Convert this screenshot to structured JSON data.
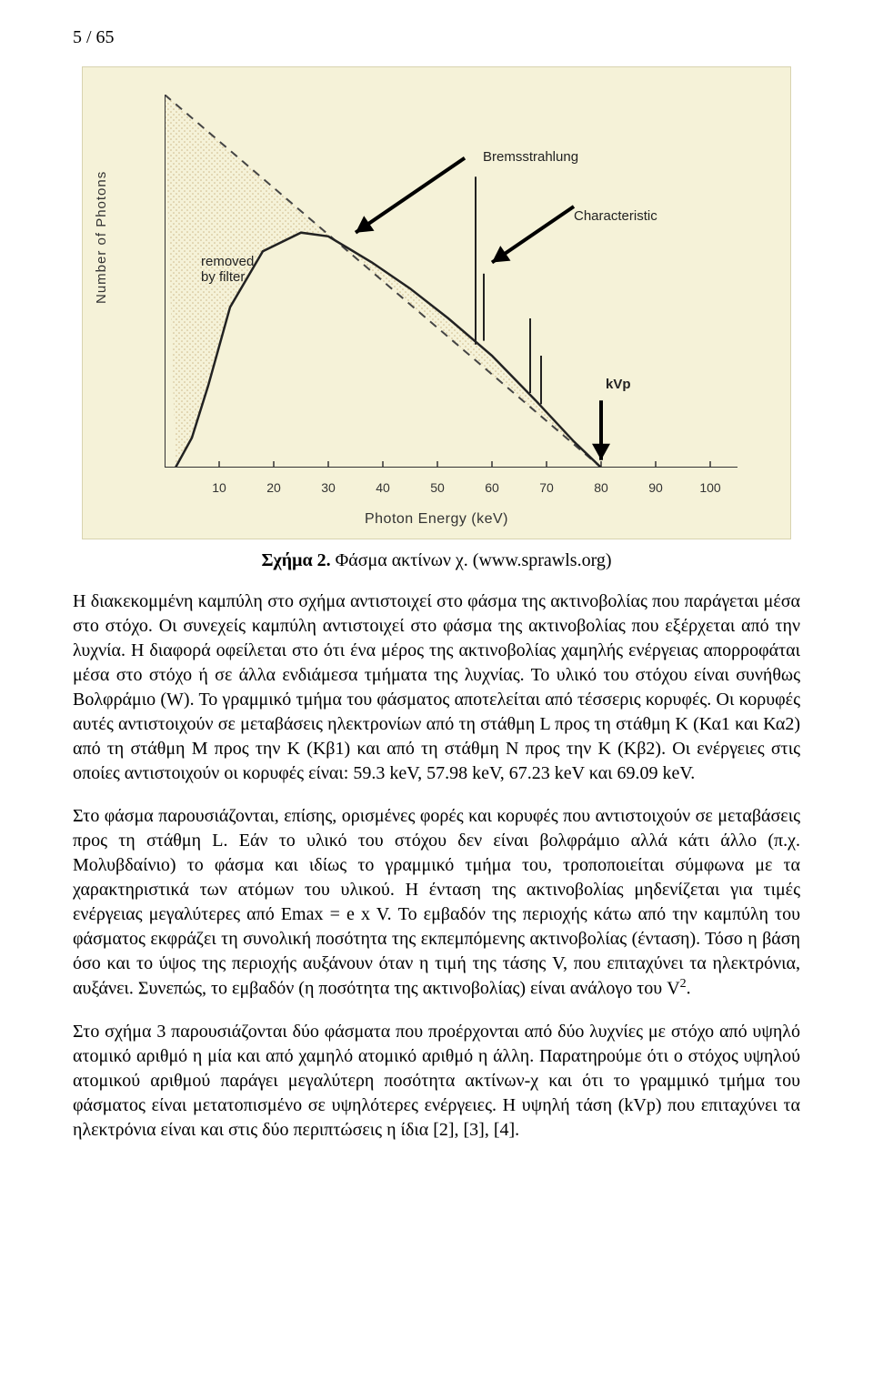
{
  "page_number": "5 / 65",
  "figure": {
    "type": "line",
    "background_color": "#f5f2d8",
    "axis_color": "#333333",
    "curve_color": "#222222",
    "dashed_color": "#444444",
    "stipple_color": "#cdb98a",
    "y_label": "Number  of  Photons",
    "x_label": "Photon Energy (keV)",
    "x_ticks": [
      {
        "label": "10",
        "value": 10
      },
      {
        "label": "20",
        "value": 20
      },
      {
        "label": "30",
        "value": 30
      },
      {
        "label": "40",
        "value": 40
      },
      {
        "label": "50",
        "value": 50
      },
      {
        "label": "60",
        "value": 60
      },
      {
        "label": "70",
        "value": 70
      },
      {
        "label": "80",
        "value": 80
      },
      {
        "label": "90",
        "value": 90
      },
      {
        "label": "100",
        "value": 100
      }
    ],
    "xlim": [
      0,
      105
    ],
    "ylim": [
      0,
      100
    ],
    "dashed_line": [
      [
        0,
        100
      ],
      [
        80,
        0
      ]
    ],
    "curve": [
      [
        2,
        0
      ],
      [
        5,
        8
      ],
      [
        8,
        22
      ],
      [
        12,
        43
      ],
      [
        18,
        58
      ],
      [
        25,
        63
      ],
      [
        30,
        62
      ],
      [
        38,
        55
      ],
      [
        45,
        48
      ],
      [
        52,
        40
      ],
      [
        60,
        30
      ],
      [
        68,
        18
      ],
      [
        75,
        7
      ],
      [
        80,
        0
      ]
    ],
    "characteristic_lines": [
      {
        "x": 57,
        "height_from": 33,
        "height_to": 78
      },
      {
        "x": 58.5,
        "height_from": 34,
        "height_to": 52
      },
      {
        "x": 67,
        "height_from": 20,
        "height_to": 40
      },
      {
        "x": 69,
        "height_from": 17,
        "height_to": 30
      }
    ],
    "callouts": {
      "removed": "removed\nby filter",
      "bremsstrahlung": "Bremsstrahlung",
      "characteristic": "Characteristic",
      "kvp": "kVp"
    }
  },
  "caption_bold": "Σχήμα 2. ",
  "caption_rest": "Φάσμα ακτίνων χ. (www.sprawls.org)",
  "para1": "Η διακεκομμένη καμπύλη στο σχήμα αντιστοιχεί στο φάσμα της ακτινοβολίας που παράγεται μέσα στο στόχο. Οι συνεχείς καμπύλη αντιστοιχεί στο φάσμα της ακτινοβολίας που εξέρχεται από την λυχνία. Η διαφορά οφείλεται στο ότι ένα μέρος της ακτινοβολίας χαμηλής ενέργειας απορροφάται μέσα στο στόχο ή σε άλλα ενδιάμεσα τμήματα της λυχνίας. Το υλικό του στόχου είναι συνήθως Βολφράμιο (W). Το γραμμικό τμήμα του φάσματος αποτελείται από τέσσερις κορυφές. Οι κορυφές αυτές αντιστοιχούν σε μεταβάσεις ηλεκτρονίων από τη στάθμη L προς τη στάθμη Κ (Κα1 και Κα2) από τη στάθμη Μ προς την Κ (Κβ1) και από τη στάθμη Ν προς την Κ (Κβ2). Οι ενέργειες στις οποίες αντιστοιχούν οι κορυφές είναι: 59.3 keV, 57.98 keV, 67.23 keV και 69.09 keV.",
  "para2_a": "Στο φάσμα παρουσιάζονται, επίσης, ορισμένες φορές και κορυφές που αντιστοιχούν σε μεταβάσεις προς τη στάθμη L. Εάν το υλικό του στόχου δεν είναι βολφράμιο αλλά κάτι άλλο (π.χ. Μολυβδαίνιο) το φάσμα και ιδίως το γραμμικό τμήμα του, τροποποιείται σύμφωνα με τα χαρακτηριστικά των ατόμων του υλικού. Η ένταση της ακτινοβολίας μηδενίζεται για τιμές ενέργειας μεγαλύτερες από Emax =  e x V. Το εμβαδόν της περιοχής κάτω από την καμπύλη του φάσματος εκφράζει τη συνολική ποσότητα της εκπεμπόμενης ακτινοβολίας (ένταση). Τόσο η βάση όσο και το ύψος της περιοχής αυξάνουν όταν η τιμή της τάσης V, που επιταχύνει τα ηλεκτρόνια, αυξάνει. Συνεπώς, το εμβαδόν (η ποσότητα της ακτινοβολίας) είναι ανάλογο του V",
  "para2_sup": "2",
  "para2_b": ".",
  "para3": "Στο σχήμα 3 παρουσιάζονται δύο φάσματα που προέρχονται από δύο λυχνίες με στόχο από υψηλό ατομικό αριθμό η μία και από χαμηλό ατομικό αριθμό η άλλη. Παρατηρούμε ότι ο στόχος υψηλού ατομικού αριθμού παράγει μεγαλύτερη ποσότητα ακτίνων-χ και ότι το γραμμικό τμήμα του φάσματος είναι μετατοπισμένο σε υψηλότερες ενέργειες. Η υψηλή τάση (kVp) που επιταχύνει τα ηλεκτρόνια είναι και στις δύο περιπτώσεις η ίδια [2], [3], [4]."
}
